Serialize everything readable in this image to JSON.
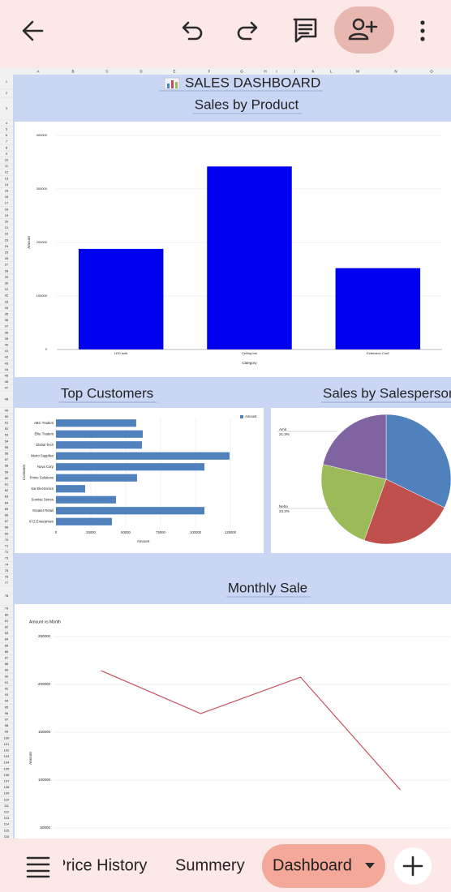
{
  "sheet": {
    "title": "SALES DASHBOARD",
    "columns": [
      "A",
      "B",
      "C",
      "D",
      "E",
      "F",
      "G",
      "H",
      "I",
      "J",
      "K",
      "L",
      "M",
      "N",
      "O"
    ],
    "rows": [
      1,
      2,
      3,
      4,
      5,
      6,
      7,
      8,
      9,
      10,
      11,
      12,
      13,
      14,
      15,
      16,
      17,
      18,
      19,
      20,
      21,
      22,
      23,
      24,
      25,
      26,
      27,
      28,
      29,
      30,
      31,
      32,
      33,
      34,
      35,
      36,
      37,
      38,
      39,
      40,
      41,
      42,
      43,
      44,
      45,
      46,
      47,
      48,
      49,
      50,
      51,
      52,
      53,
      54,
      55,
      56,
      57,
      58,
      59,
      60,
      61,
      62,
      63,
      64,
      65,
      66,
      67,
      68,
      69,
      70,
      71,
      72,
      73,
      74,
      75,
      76,
      77,
      78,
      79,
      80,
      81,
      82,
      83,
      84,
      85,
      86,
      87,
      88,
      89,
      90,
      91,
      92,
      93,
      94,
      95,
      96,
      97,
      98,
      99,
      100,
      101,
      102,
      103,
      104,
      105,
      106,
      107,
      108,
      109,
      110,
      111,
      112,
      113,
      114,
      115,
      116
    ]
  },
  "tabs": [
    "Price History",
    "Summery",
    "Dashboard"
  ],
  "chart_data": [
    {
      "type": "bar",
      "title": "Sales by Product",
      "categories": [
        "LED bulb",
        "Ceiling fan",
        "Extension Cord"
      ],
      "values": [
        188000,
        342000,
        152000
      ],
      "color": "#0000f0",
      "ylim": [
        0,
        400000
      ],
      "yticks": [
        0,
        100000,
        200000,
        300000,
        400000
      ],
      "x_label": "Category",
      "y_label": "Amount",
      "grid": true
    },
    {
      "type": "bar",
      "orientation": "horizontal",
      "title": "Top Customers",
      "categories": [
        "ABC Traders",
        "Elite Traders",
        "Global Tech",
        "Metro Supplies",
        "Nova Corp",
        "Prime Solutions",
        "Sai Electronics",
        "Sunrise Stores",
        "Greater Retail",
        "XYZ Enterprises"
      ],
      "series": [
        {
          "name": "Amount",
          "color": "#4f81bd",
          "values": [
            57500,
            62200,
            61600,
            124400,
            106400,
            58100,
            20900,
            43000,
            106400,
            40100
          ]
        }
      ],
      "xlim": [
        0,
        125000
      ],
      "xticks": [
        0,
        25000,
        50000,
        75000,
        100000,
        125000
      ],
      "x_label": "Amount",
      "y_label": "Customer",
      "grid": true,
      "legend": "top-right"
    },
    {
      "type": "pie",
      "title": "Sales by Salesperson",
      "categories": [
        null,
        null,
        "Neha",
        "Amit"
      ],
      "values": [
        32.2,
        23.3,
        23.2,
        21.3
      ],
      "value_labels": [
        null,
        null,
        "23.2%",
        "21.3%"
      ],
      "colors": [
        "#4f81bd",
        "#c0504d",
        "#9bbb59",
        "#8064a2"
      ]
    },
    {
      "type": "line",
      "title": "Monthly Sale",
      "subtitle": "Amount vs Month",
      "categories": [
        null,
        null,
        null,
        null
      ],
      "values": [
        214400,
        169500,
        207600,
        89800
      ],
      "color": "#c8505f",
      "ylim": [
        0,
        250000
      ],
      "yticks": [
        50000,
        100000,
        150000,
        200000,
        250000
      ],
      "y_label": "Amount",
      "grid": true
    }
  ]
}
